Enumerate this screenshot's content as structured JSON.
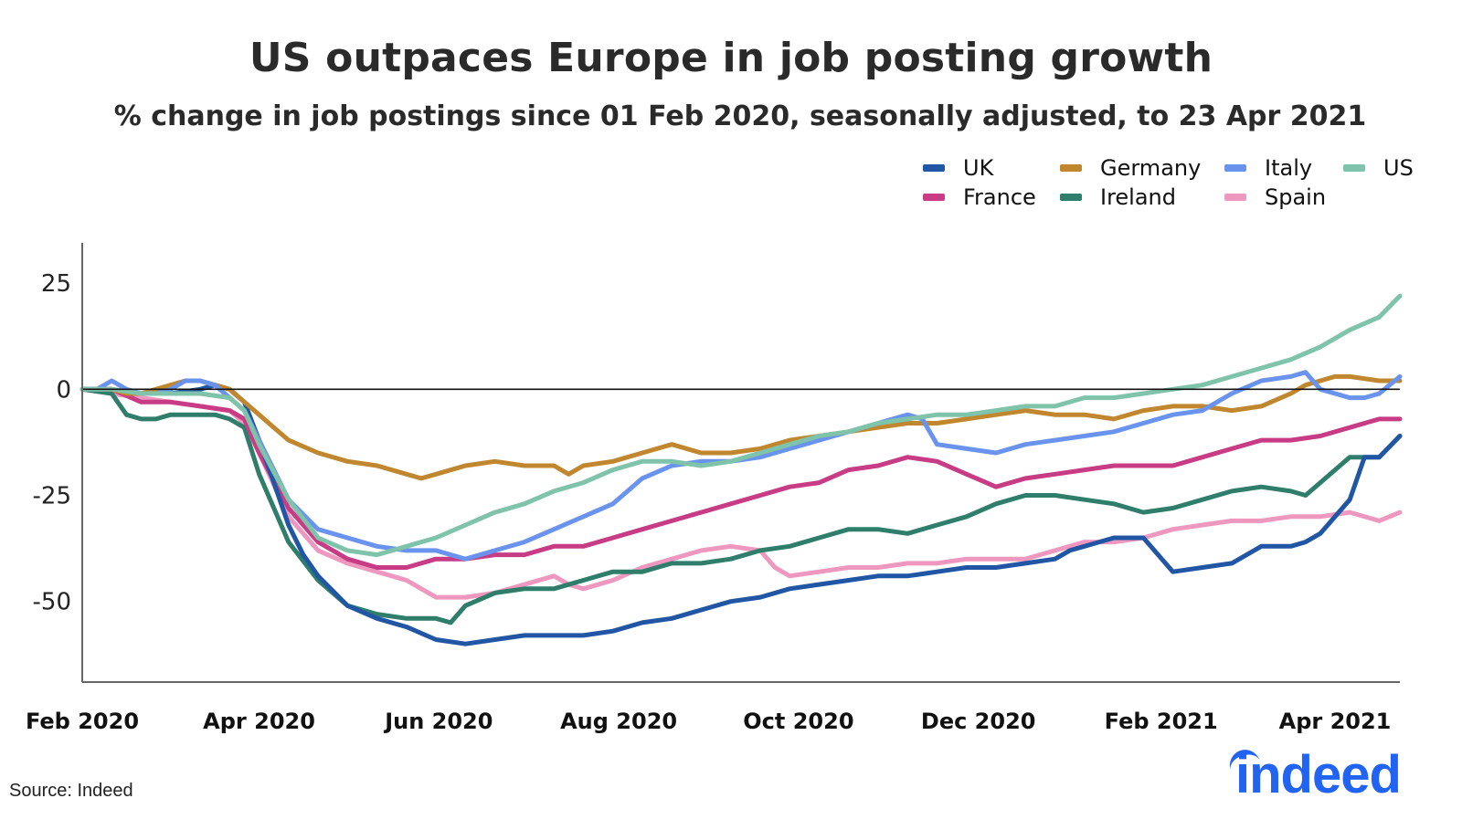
{
  "header": {
    "title": "US outpaces Europe in job posting growth",
    "subtitle": "% change in job postings since 01 Feb 2020, seasonally adjusted, to 23 Apr 2021"
  },
  "footer": {
    "source": "Source: Indeed",
    "logo_text": "indeed",
    "logo_color": "#2164f3"
  },
  "chart_data": {
    "type": "line",
    "title": "US outpaces Europe in job posting growth",
    "subtitle": "% change in job postings since 01 Feb 2020, seasonally adjusted, to 23 Apr 2021",
    "xlabel": "",
    "ylabel": "",
    "x_unit": "days since 01 Feb 2020",
    "xlim": [
      0,
      447
    ],
    "ylim": [
      -69,
      34.5
    ],
    "yticks": [
      25,
      0,
      -25,
      -50
    ],
    "ytick_labels": [
      "25",
      "0",
      "-25",
      "-50"
    ],
    "xticks": [
      0,
      60,
      121,
      182,
      243,
      304,
      366,
      425
    ],
    "xtick_labels": [
      "Feb 2020",
      "Apr 2020",
      "Jun 2020",
      "Aug 2020",
      "Oct 2020",
      "Dec 2020",
      "Feb 2021",
      "Apr 2021"
    ],
    "reference_line": 0,
    "grid": false,
    "legend_position": "top-right",
    "series": [
      {
        "name": "UK",
        "color": "#2156a5",
        "x": [
          0,
          10,
          20,
          30,
          40,
          45,
          50,
          55,
          60,
          65,
          70,
          75,
          80,
          90,
          100,
          110,
          120,
          130,
          140,
          150,
          160,
          170,
          180,
          190,
          200,
          210,
          220,
          230,
          240,
          250,
          260,
          270,
          280,
          290,
          300,
          310,
          320,
          330,
          335,
          340,
          345,
          350,
          360,
          370,
          380,
          390,
          400,
          410,
          415,
          420,
          425,
          430,
          435,
          440,
          447
        ],
        "y": [
          0,
          0,
          -1,
          -1,
          0,
          1,
          0,
          -3,
          -12,
          -22,
          -32,
          -39,
          -44,
          -51,
          -54,
          -56,
          -59,
          -60,
          -59,
          -58,
          -58,
          -58,
          -57,
          -55,
          -54,
          -52,
          -50,
          -49,
          -47,
          -46,
          -45,
          -44,
          -44,
          -43,
          -42,
          -42,
          -41,
          -40,
          -38,
          -37,
          -36,
          -35,
          -35,
          -43,
          -42,
          -41,
          -37,
          -37,
          -36,
          -34,
          -30,
          -26,
          -16,
          -16,
          -11
        ]
      },
      {
        "name": "France",
        "color": "#c83c86",
        "x": [
          0,
          10,
          20,
          30,
          40,
          50,
          55,
          60,
          70,
          80,
          90,
          100,
          110,
          120,
          130,
          140,
          150,
          160,
          170,
          180,
          190,
          200,
          210,
          220,
          230,
          240,
          250,
          260,
          270,
          280,
          290,
          300,
          310,
          320,
          330,
          340,
          350,
          360,
          370,
          380,
          390,
          400,
          410,
          420,
          430,
          440,
          447
        ],
        "y": [
          0,
          0,
          -3,
          -3,
          -4,
          -5,
          -7,
          -15,
          -28,
          -36,
          -40,
          -42,
          -42,
          -40,
          -40,
          -39,
          -39,
          -37,
          -37,
          -35,
          -33,
          -31,
          -29,
          -27,
          -25,
          -23,
          -22,
          -19,
          -18,
          -16,
          -17,
          -20,
          -23,
          -21,
          -20,
          -19,
          -18,
          -18,
          -18,
          -16,
          -14,
          -12,
          -12,
          -11,
          -9,
          -7,
          -7
        ]
      },
      {
        "name": "Germany",
        "color": "#c0872f",
        "x": [
          0,
          10,
          15,
          20,
          25,
          30,
          35,
          40,
          45,
          50,
          55,
          60,
          65,
          70,
          80,
          90,
          100,
          110,
          115,
          120,
          130,
          140,
          150,
          160,
          165,
          170,
          180,
          190,
          200,
          210,
          220,
          230,
          240,
          250,
          260,
          270,
          280,
          290,
          300,
          310,
          320,
          330,
          340,
          350,
          360,
          370,
          380,
          390,
          400,
          410,
          415,
          420,
          425,
          430,
          440,
          447
        ],
        "y": [
          0,
          0,
          -1,
          -1,
          0,
          1,
          2,
          2,
          1,
          0,
          -3,
          -6,
          -9,
          -12,
          -15,
          -17,
          -18,
          -20,
          -21,
          -20,
          -18,
          -17,
          -18,
          -18,
          -20,
          -18,
          -17,
          -15,
          -13,
          -15,
          -15,
          -14,
          -12,
          -11,
          -10,
          -9,
          -8,
          -8,
          -7,
          -6,
          -5,
          -6,
          -6,
          -7,
          -5,
          -4,
          -4,
          -5,
          -4,
          -1,
          1,
          2,
          3,
          3,
          2,
          2
        ]
      },
      {
        "name": "Ireland",
        "color": "#2f7e6b",
        "x": [
          0,
          10,
          15,
          20,
          25,
          30,
          35,
          40,
          45,
          50,
          55,
          60,
          70,
          80,
          90,
          100,
          110,
          120,
          125,
          130,
          140,
          150,
          160,
          170,
          180,
          190,
          200,
          210,
          220,
          230,
          240,
          250,
          260,
          270,
          280,
          290,
          300,
          310,
          320,
          330,
          340,
          350,
          360,
          370,
          380,
          390,
          400,
          410,
          415,
          420,
          430,
          440,
          447
        ],
        "y": [
          0,
          -1,
          -6,
          -7,
          -7,
          -6,
          -6,
          -6,
          -6,
          -7,
          -9,
          -20,
          -36,
          -45,
          -51,
          -53,
          -54,
          -54,
          -55,
          -51,
          -48,
          -47,
          -47,
          -45,
          -43,
          -43,
          -41,
          -41,
          -40,
          -38,
          -37,
          -35,
          -33,
          -33,
          -34,
          -32,
          -30,
          -27,
          -25,
          -25,
          -26,
          -27,
          -29,
          -28,
          -26,
          -24,
          -23,
          -24,
          -25,
          -22,
          -16,
          -16,
          -11
        ]
      },
      {
        "name": "Italy",
        "color": "#6a93ee",
        "x": [
          0,
          5,
          10,
          15,
          20,
          25,
          30,
          35,
          40,
          45,
          50,
          55,
          60,
          70,
          80,
          90,
          100,
          110,
          120,
          130,
          140,
          150,
          160,
          170,
          180,
          185,
          190,
          200,
          210,
          220,
          230,
          240,
          250,
          260,
          270,
          280,
          285,
          290,
          300,
          310,
          320,
          330,
          340,
          350,
          360,
          370,
          380,
          390,
          400,
          410,
          415,
          420,
          425,
          430,
          435,
          440,
          447
        ],
        "y": [
          0,
          0,
          2,
          0,
          -1,
          -1,
          0,
          2,
          2,
          1,
          -2,
          -5,
          -12,
          -26,
          -33,
          -35,
          -37,
          -38,
          -38,
          -40,
          -38,
          -36,
          -33,
          -30,
          -27,
          -24,
          -21,
          -18,
          -17,
          -17,
          -16,
          -14,
          -12,
          -10,
          -8,
          -6,
          -7,
          -13,
          -14,
          -15,
          -13,
          -12,
          -11,
          -10,
          -8,
          -6,
          -5,
          -1,
          2,
          3,
          4,
          0,
          -1,
          -2,
          -2,
          -1,
          3
        ]
      },
      {
        "name": "Spain",
        "color": "#ee98c0",
        "x": [
          0,
          10,
          20,
          30,
          40,
          50,
          55,
          60,
          70,
          80,
          90,
          100,
          110,
          120,
          130,
          140,
          150,
          160,
          165,
          170,
          180,
          190,
          200,
          210,
          220,
          230,
          235,
          240,
          250,
          260,
          270,
          280,
          290,
          300,
          310,
          320,
          330,
          340,
          350,
          360,
          370,
          380,
          390,
          400,
          410,
          420,
          430,
          440,
          447
        ],
        "y": [
          0,
          -1,
          -2,
          -3,
          -4,
          -5,
          -8,
          -15,
          -30,
          -38,
          -41,
          -43,
          -45,
          -49,
          -49,
          -48,
          -46,
          -44,
          -46,
          -47,
          -45,
          -42,
          -40,
          -38,
          -37,
          -38,
          -42,
          -44,
          -43,
          -42,
          -42,
          -41,
          -41,
          -40,
          -40,
          -40,
          -38,
          -36,
          -36,
          -35,
          -33,
          -32,
          -31,
          -31,
          -30,
          -30,
          -29,
          -31,
          -29
        ]
      },
      {
        "name": "US",
        "color": "#7fc3aa",
        "x": [
          0,
          10,
          20,
          30,
          40,
          50,
          55,
          60,
          70,
          80,
          90,
          100,
          110,
          120,
          130,
          140,
          150,
          160,
          170,
          180,
          190,
          200,
          210,
          220,
          230,
          240,
          250,
          260,
          270,
          280,
          290,
          300,
          310,
          320,
          330,
          340,
          350,
          360,
          370,
          380,
          390,
          400,
          410,
          420,
          430,
          440,
          447
        ],
        "y": [
          0,
          0,
          -1,
          -1,
          -1,
          -2,
          -5,
          -13,
          -26,
          -35,
          -38,
          -39,
          -37,
          -35,
          -32,
          -29,
          -27,
          -24,
          -22,
          -19,
          -17,
          -17,
          -18,
          -17,
          -15,
          -13,
          -11,
          -10,
          -8,
          -7,
          -6,
          -6,
          -5,
          -4,
          -4,
          -2,
          -2,
          -1,
          0,
          1,
          3,
          5,
          7,
          10,
          14,
          17,
          22
        ]
      }
    ]
  }
}
